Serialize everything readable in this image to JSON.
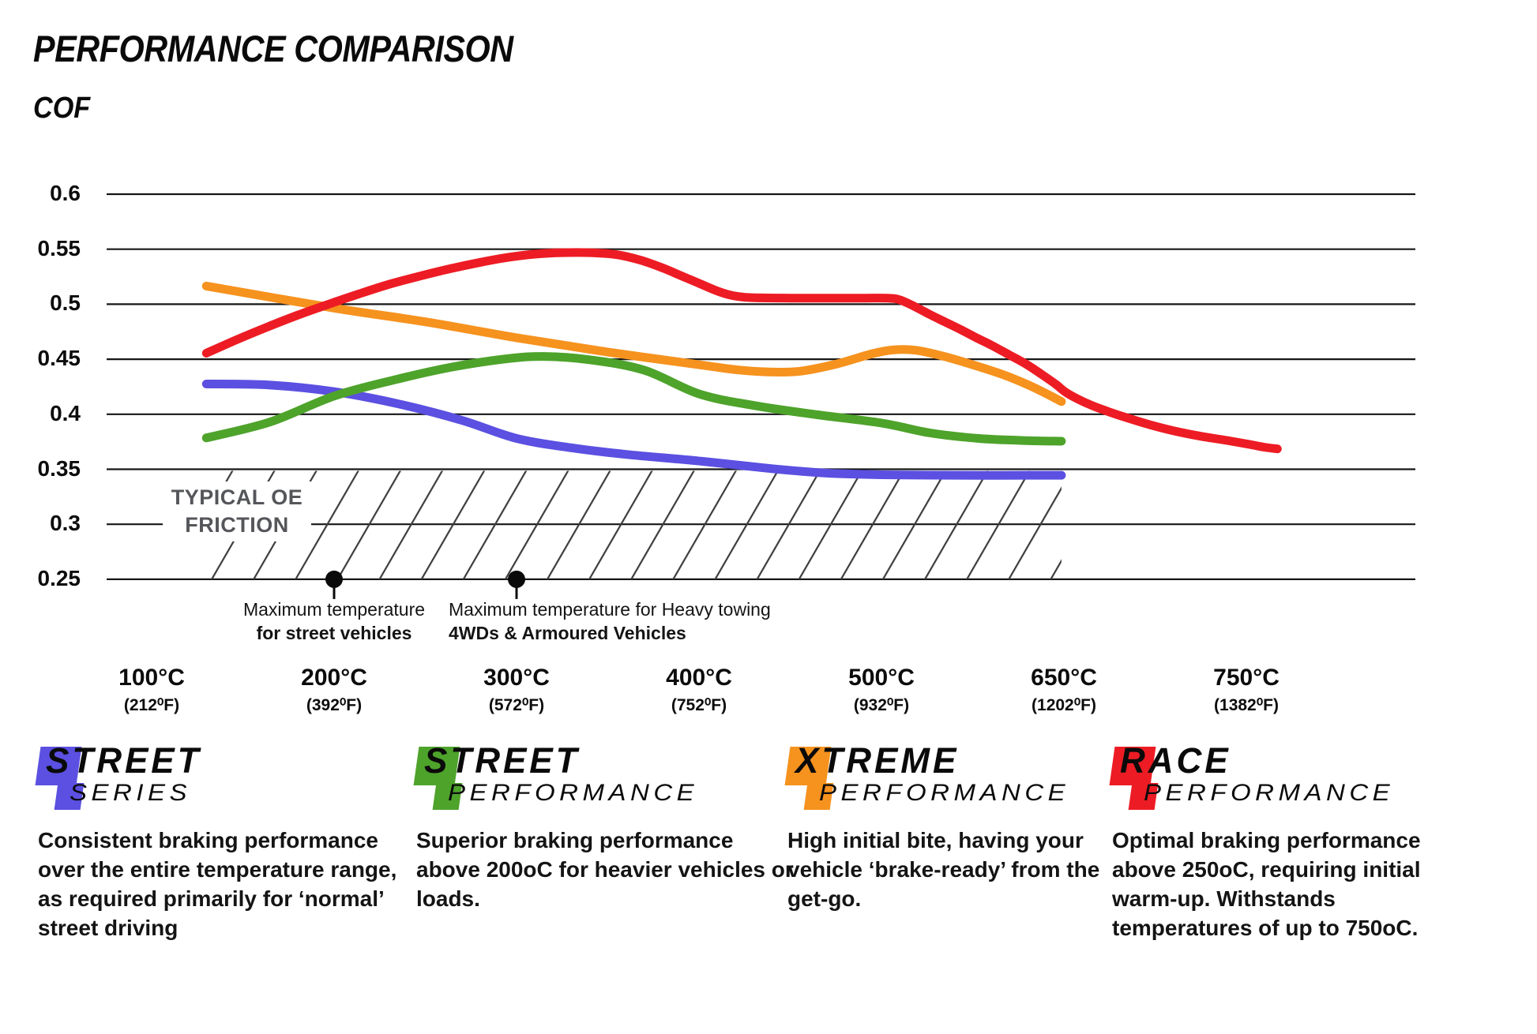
{
  "header": {
    "title": "PERFORMANCE COMPARISON",
    "axis_label": "COF"
  },
  "chart_data": {
    "type": "line",
    "title": "PERFORMANCE COMPARISON",
    "ylabel": "COF",
    "ylim": [
      0.25,
      0.6
    ],
    "grid": "horizontal",
    "y_ticks": [
      {
        "label": "0.6",
        "value": 0.6
      },
      {
        "label": "0.55",
        "value": 0.55
      },
      {
        "label": "0.5",
        "value": 0.5
      },
      {
        "label": "0.45",
        "value": 0.45
      },
      {
        "label": "0.4",
        "value": 0.4
      },
      {
        "label": "0.35",
        "value": 0.35
      },
      {
        "label": "0.3",
        "value": 0.3
      },
      {
        "label": "0.25",
        "value": 0.25
      }
    ],
    "x_ticks": [
      {
        "temp_c": 100,
        "label_c": "100°C",
        "label_f": "(212⁰F)"
      },
      {
        "temp_c": 200,
        "label_c": "200°C",
        "label_f": "(392⁰F)"
      },
      {
        "temp_c": 300,
        "label_c": "300°C",
        "label_f": "(572⁰F)"
      },
      {
        "temp_c": 400,
        "label_c": "400°C",
        "label_f": "(752⁰F)"
      },
      {
        "temp_c": 500,
        "label_c": "500°C",
        "label_f": "(932⁰F)"
      },
      {
        "temp_c": 650,
        "label_c": "650°C",
        "label_f": "(1202⁰F)"
      },
      {
        "temp_c": 750,
        "label_c": "750°C",
        "label_f": "(1382⁰F)"
      }
    ],
    "oe_band": {
      "label": [
        "TYPICAL OE",
        "FRICTION"
      ],
      "cof_from": 0.25,
      "cof_to": 0.35,
      "temp_from": 130,
      "temp_to": 648
    },
    "markers": [
      {
        "temp_c": 200,
        "cof": 0.25,
        "lines": [
          "Maximum temperature",
          "for street vehicles"
        ]
      },
      {
        "temp_c": 300,
        "cof": 0.25,
        "lines": [
          "Maximum temperature for Heavy towing",
          "4WDs & Armoured Vehicles"
        ]
      }
    ],
    "series": [
      {
        "name": "Street Series",
        "color": "#5b50e1",
        "points": [
          [
            130,
            0.4275
          ],
          [
            165,
            0.4265
          ],
          [
            200,
            0.4205
          ],
          [
            235,
            0.4095
          ],
          [
            270,
            0.3945
          ],
          [
            300,
            0.378
          ],
          [
            330,
            0.3695
          ],
          [
            360,
            0.3635
          ],
          [
            400,
            0.3575
          ],
          [
            440,
            0.3505
          ],
          [
            470,
            0.3465
          ],
          [
            500,
            0.345
          ],
          [
            560,
            0.3445
          ],
          [
            620,
            0.3445
          ],
          [
            648,
            0.3445
          ]
        ]
      },
      {
        "name": "Street Performance",
        "color": "#4ea32b",
        "points": [
          [
            130,
            0.3785
          ],
          [
            165,
            0.393
          ],
          [
            200,
            0.4165
          ],
          [
            235,
            0.432
          ],
          [
            265,
            0.443
          ],
          [
            295,
            0.4505
          ],
          [
            315,
            0.4525
          ],
          [
            340,
            0.4495
          ],
          [
            370,
            0.44
          ],
          [
            400,
            0.4185
          ],
          [
            430,
            0.408
          ],
          [
            465,
            0.3995
          ],
          [
            500,
            0.392
          ],
          [
            540,
            0.383
          ],
          [
            580,
            0.378
          ],
          [
            620,
            0.376
          ],
          [
            648,
            0.3755
          ]
        ]
      },
      {
        "name": "Xtreme Performance",
        "color": "#f6921e",
        "points": [
          [
            130,
            0.5165
          ],
          [
            200,
            0.4965
          ],
          [
            250,
            0.484
          ],
          [
            300,
            0.4695
          ],
          [
            350,
            0.4565
          ],
          [
            400,
            0.445
          ],
          [
            420,
            0.4405
          ],
          [
            437,
            0.4385
          ],
          [
            455,
            0.439
          ],
          [
            475,
            0.4455
          ],
          [
            495,
            0.455
          ],
          [
            510,
            0.4585
          ],
          [
            528,
            0.4582
          ],
          [
            550,
            0.453
          ],
          [
            575,
            0.445
          ],
          [
            600,
            0.436
          ],
          [
            620,
            0.427
          ],
          [
            635,
            0.419
          ],
          [
            648,
            0.4115
          ]
        ]
      },
      {
        "name": "Race Performance",
        "color": "#ed1c24",
        "points": [
          [
            130,
            0.4555
          ],
          [
            147,
            0.468
          ],
          [
            163,
            0.479
          ],
          [
            180,
            0.49
          ],
          [
            197,
            0.5
          ],
          [
            213,
            0.509
          ],
          [
            230,
            0.518
          ],
          [
            247,
            0.5255
          ],
          [
            263,
            0.532
          ],
          [
            280,
            0.538
          ],
          [
            295,
            0.5425
          ],
          [
            310,
            0.5455
          ],
          [
            325,
            0.5468
          ],
          [
            340,
            0.5468
          ],
          [
            355,
            0.545
          ],
          [
            368,
            0.54
          ],
          [
            380,
            0.533
          ],
          [
            390,
            0.526
          ],
          [
            400,
            0.519
          ],
          [
            410,
            0.512
          ],
          [
            418,
            0.508
          ],
          [
            428,
            0.506
          ],
          [
            450,
            0.5055
          ],
          [
            470,
            0.5055
          ],
          [
            490,
            0.5055
          ],
          [
            505,
            0.5055
          ],
          [
            515,
            0.504
          ],
          [
            528,
            0.4975
          ],
          [
            540,
            0.4905
          ],
          [
            552,
            0.484
          ],
          [
            565,
            0.477
          ],
          [
            578,
            0.4695
          ],
          [
            590,
            0.463
          ],
          [
            605,
            0.454
          ],
          [
            619,
            0.4455
          ],
          [
            632,
            0.436
          ],
          [
            643,
            0.4275
          ],
          [
            651,
            0.42
          ],
          [
            658,
            0.4135
          ],
          [
            666,
            0.4075
          ],
          [
            675,
            0.402
          ],
          [
            685,
            0.3965
          ],
          [
            697,
            0.3905
          ],
          [
            710,
            0.385
          ],
          [
            725,
            0.38
          ],
          [
            740,
            0.376
          ],
          [
            752,
            0.3725
          ],
          [
            760,
            0.37
          ],
          [
            767,
            0.3685
          ]
        ]
      }
    ]
  },
  "legend": {
    "items": [
      {
        "word1": "STREET",
        "word2": "SERIES",
        "color": "#5b50e1",
        "description": "Consistent braking performance over the entire temperature range, as required primarily for ‘normal’ street driving"
      },
      {
        "word1": "STREET",
        "word2": "PERFORMANCE",
        "color": "#4ea32b",
        "description": "Superior braking performance above 200oC for heavier vehicles or loads."
      },
      {
        "word1": "XTREME",
        "word2": "PERFORMANCE",
        "color": "#f6921e",
        "description": "High initial bite, having your vehicle ‘brake-ready’ from the get-go."
      },
      {
        "word1": "RACE",
        "word2": "PERFORMANCE",
        "color": "#ed1c24",
        "description": "Optimal braking performance above 250oC, requiring initial warm-up. Withstands temperatures of up to 750oC."
      }
    ]
  }
}
